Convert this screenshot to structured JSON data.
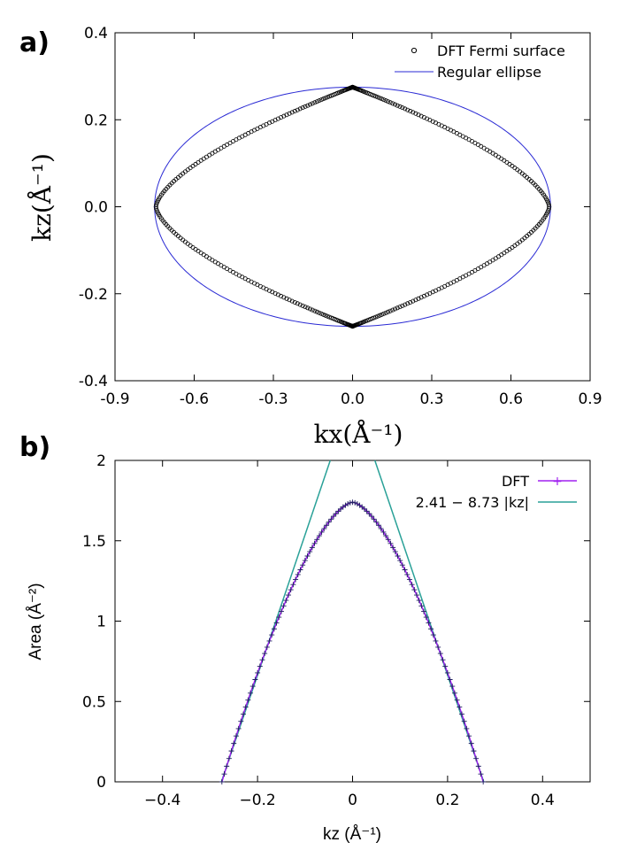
{
  "chart_data": [
    {
      "panel_label": "a)",
      "type": "scatter",
      "xlabel": "kx(Å⁻¹)",
      "ylabel": "kz(Å⁻¹)",
      "xlim": [
        -0.9,
        0.9
      ],
      "ylim": [
        -0.4,
        0.4
      ],
      "x_ticks": [
        -0.9,
        -0.6,
        -0.3,
        0.0,
        0.3,
        0.6,
        0.9
      ],
      "y_ticks": [
        -0.4,
        -0.2,
        0.0,
        0.2,
        0.4
      ],
      "x_tick_labels": [
        "-0.9",
        "-0.6",
        "-0.3",
        "0.0",
        "0.3",
        "0.6",
        "0.9"
      ],
      "y_tick_labels": [
        "-0.4",
        "-0.2",
        "0.0",
        "0.2",
        "0.4"
      ],
      "legend": [
        "DFT Fermi surface",
        "Regular ellipse"
      ],
      "legend_position": "top-right",
      "series": [
        {
          "name": "DFT Fermi surface",
          "kind": "points",
          "marker": "open-circle",
          "color": "#000000",
          "x_semi_axis": 0.745,
          "z_semi_axis": 0.275,
          "shape_exponent": 1.55,
          "n_points": 380
        },
        {
          "name": "Regular ellipse",
          "kind": "line",
          "color": "#2a2ad4",
          "x_semi_axis": 0.75,
          "z_semi_axis": 0.275
        }
      ]
    },
    {
      "panel_label": "b)",
      "type": "line",
      "xlabel": "kz (Å⁻¹)",
      "ylabel": "Area (Å⁻²)",
      "xlim": [
        -0.5,
        0.5
      ],
      "ylim": [
        0,
        2
      ],
      "x_ticks": [
        -0.4,
        -0.2,
        0,
        0.2,
        0.4
      ],
      "y_ticks": [
        0,
        0.5,
        1,
        1.5,
        2
      ],
      "x_tick_labels": [
        "−0.4",
        "−0.2",
        "0",
        "0.2",
        "0.4"
      ],
      "y_tick_labels": [
        "0",
        "0.5",
        "1",
        "1.5",
        "2"
      ],
      "legend": [
        "DFT",
        "2.41 − 8.73 |kz|"
      ],
      "legend_position": "top-right",
      "series": [
        {
          "name": "DFT",
          "color": "#a020f0",
          "marker": "plus",
          "kz_range": [
            -0.275,
            0.275
          ],
          "kz_step": 0.005,
          "peak_area": 1.74,
          "edge_area": 0,
          "shape_exponent": 1.55
        },
        {
          "name": "2.41 − 8.73 |kz|",
          "color": "#2aa198",
          "intercept": 2.41,
          "slope": -8.73
        }
      ]
    }
  ],
  "colors": {
    "dft_points": "#000000",
    "ellipse": "#2a2ad4",
    "dft_area": "#a020f0",
    "linear_fit": "#2aa198"
  }
}
